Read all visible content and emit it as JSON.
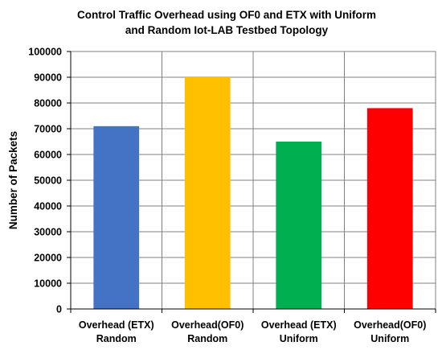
{
  "chart_data": {
    "type": "bar",
    "title_lines": [
      "Control Traffic Overhead using OF0 and ETX with Uniform",
      "and Random Iot-LAB Testbed Topology"
    ],
    "xlabel": "",
    "ylabel": "Number of Packets",
    "ylim": [
      0,
      100000
    ],
    "yticks": [
      0,
      10000,
      20000,
      30000,
      40000,
      50000,
      60000,
      70000,
      80000,
      90000,
      100000
    ],
    "grid": true,
    "categories": [
      [
        "Overhead (ETX)",
        "Random"
      ],
      [
        "Overhead(OF0)",
        "Random"
      ],
      [
        "Overhead (ETX)",
        "Uniform"
      ],
      [
        "Overhead(OF0)",
        "Uniform"
      ]
    ],
    "values": [
      71000,
      90000,
      65000,
      78000
    ],
    "colors": [
      "#4472C4",
      "#FFC000",
      "#00B050",
      "#FF0000"
    ]
  }
}
